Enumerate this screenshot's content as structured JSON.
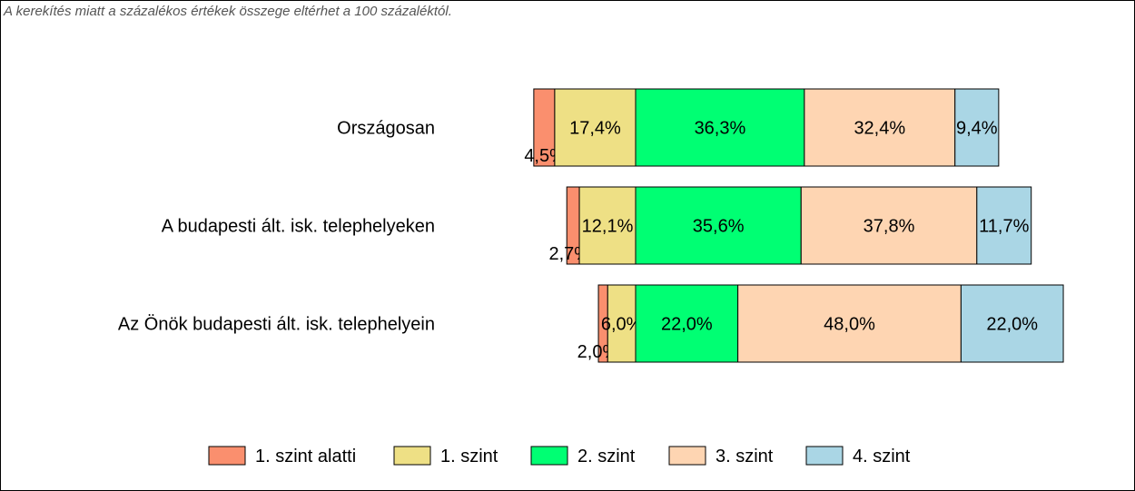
{
  "note": "A kerekítés miatt a  százalékos értékek összege eltérhet a 100 százaléktól.",
  "chart_data": {
    "type": "bar",
    "orientation": "horizontal",
    "stacked": true,
    "categories": [
      "Országosan",
      "A budapesti ált. isk. telephelyeken",
      "Az Önök budapesti ált. isk. telephelyein"
    ],
    "series": [
      {
        "name": "1. szint alatti",
        "color": "#fa8f6e",
        "values": [
          4.5,
          2.7,
          2.0
        ],
        "labels": [
          "4,5%",
          "2,7%",
          "2,0%"
        ]
      },
      {
        "name": "1. szint",
        "color": "#eee085",
        "values": [
          17.4,
          12.1,
          6.0
        ],
        "labels": [
          "17,4%",
          "12,1%",
          "6,0%"
        ]
      },
      {
        "name": "2. szint",
        "color": "#00ff73",
        "values": [
          36.3,
          35.6,
          22.0
        ],
        "labels": [
          "36,3%",
          "35,6%",
          "22,0%"
        ]
      },
      {
        "name": "3. szint",
        "color": "#fed5b2",
        "values": [
          32.4,
          37.8,
          48.0
        ],
        "labels": [
          "32,4%",
          "37,8%",
          "48,0%"
        ]
      },
      {
        "name": "4. szint",
        "color": "#aad6e5",
        "values": [
          9.4,
          11.7,
          22.0
        ],
        "labels": [
          "9,4%",
          "11,7%",
          "22,0%"
        ]
      }
    ],
    "alignment": "bars centered on the boundary between 1. szint and 2. szint",
    "legend_position": "bottom",
    "grid": false,
    "title": "",
    "xlabel": "",
    "ylabel": ""
  }
}
